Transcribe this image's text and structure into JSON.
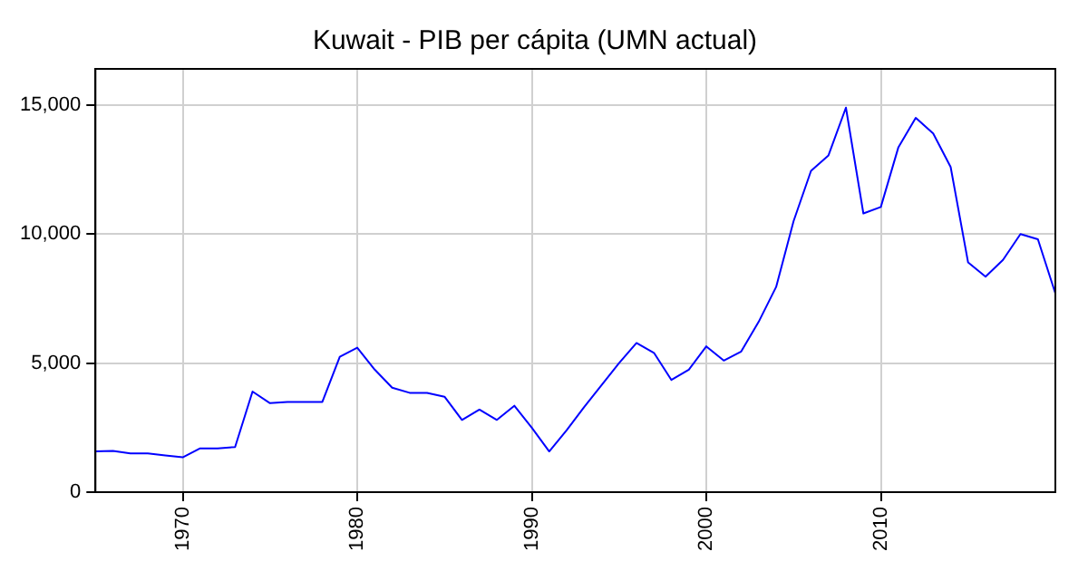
{
  "chart_data": {
    "type": "line",
    "title": "Kuwait - PIB per cápita (UMN actual)",
    "x": [
      1965,
      1966,
      1967,
      1968,
      1969,
      1970,
      1971,
      1972,
      1973,
      1974,
      1975,
      1976,
      1977,
      1978,
      1979,
      1980,
      1981,
      1982,
      1983,
      1984,
      1985,
      1986,
      1987,
      1988,
      1989,
      1990,
      1991,
      1992,
      1993,
      1994,
      1995,
      1996,
      1997,
      1998,
      1999,
      2000,
      2001,
      2002,
      2003,
      2004,
      2005,
      2006,
      2007,
      2008,
      2009,
      2010,
      2011,
      2012,
      2013,
      2014,
      2015,
      2016,
      2017,
      2018,
      2019,
      2020
    ],
    "series": [
      {
        "color": "#0000ff",
        "values": [
          1580,
          1600,
          1500,
          1500,
          1420,
          1350,
          1700,
          1700,
          1750,
          3900,
          3450,
          3500,
          3500,
          3500,
          5250,
          5600,
          4750,
          4050,
          3850,
          3850,
          3700,
          2800,
          3200,
          2800,
          3350,
          2500,
          1580,
          2400,
          3300,
          4150,
          5000,
          5780,
          5400,
          4350,
          4750,
          5650,
          5100,
          5450,
          6600,
          7950,
          10500,
          12450,
          13050,
          14900,
          10800,
          11050,
          13350,
          14500,
          13900,
          12600,
          8900,
          8350,
          9000,
          10000,
          9800,
          7700
        ]
      }
    ],
    "xlim": [
      1965,
      2020
    ],
    "xticks": [
      1970,
      1980,
      1990,
      2000,
      2010
    ],
    "ylim": [
      0,
      16400
    ],
    "yticks": [
      {
        "value": 0,
        "label": "0"
      },
      {
        "value": 5000,
        "label": "5,000"
      },
      {
        "value": 10000,
        "label": "10,000"
      },
      {
        "value": 15000,
        "label": "15,000"
      }
    ],
    "grid": true,
    "legend": false,
    "marker": "none",
    "line_style": "solid"
  }
}
